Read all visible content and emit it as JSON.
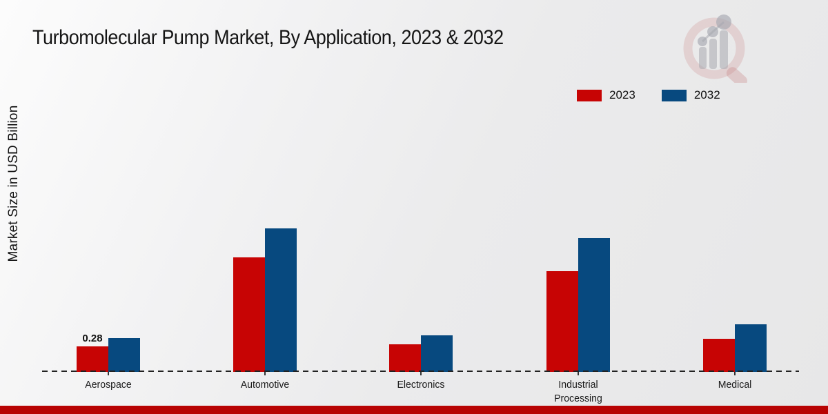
{
  "title": "Turbomolecular Pump Market, By Application, 2023 & 2032",
  "y_axis_label": "Market Size in USD Billion",
  "legend": {
    "items": [
      {
        "label": "2023",
        "color": "#c70404"
      },
      {
        "label": "2032",
        "color": "#07497f"
      }
    ]
  },
  "colors": {
    "series_2023": "#c70404",
    "series_2032": "#07497f",
    "bottom_stripe": "#b80303",
    "axis": "#222222",
    "background_light": "#fcfcfc",
    "background_dark": "#e7e7e8"
  },
  "chart_data": {
    "type": "bar",
    "title": "Turbomolecular Pump Market, By Application, 2023 & 2032",
    "xlabel": "",
    "ylabel": "Market Size in USD Billion",
    "categories": [
      "Aerospace",
      "Automotive",
      "Electronics",
      "Industrial Processing",
      "Medical"
    ],
    "series": [
      {
        "name": "2023",
        "color": "#c70404",
        "values": [
          0.28,
          1.24,
          0.3,
          1.09,
          0.36
        ]
      },
      {
        "name": "2032",
        "color": "#07497f",
        "values": [
          0.37,
          1.56,
          0.4,
          1.45,
          0.52
        ]
      }
    ],
    "bar_labels": [
      {
        "series": "2023",
        "category": "Aerospace",
        "text": "0.28"
      }
    ],
    "ylim": [
      0,
      3.3
    ],
    "grid": false,
    "legend_position": "top-right",
    "baseline_style": "dashed"
  },
  "watermark": {
    "name": "market-research-logo"
  }
}
